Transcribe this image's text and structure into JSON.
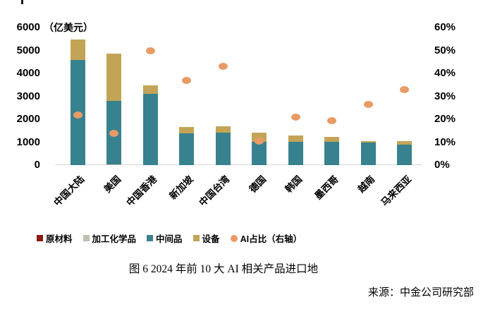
{
  "chart_data": {
    "type": "bar",
    "subtype": "stacked-bars-with-scatter-right-axis",
    "title": "图 6 2024 年前 10 大 AI 相关产品进口地",
    "unit_label": "（亿美元）",
    "categories": [
      "中国大陆",
      "美国",
      "中国香港",
      "新加坡",
      "中国台湾",
      "德国",
      "韩国",
      "墨西哥",
      "越南",
      "马来西亚"
    ],
    "series": [
      {
        "name": "原材料",
        "color": "#8B1A10",
        "values": [
          0,
          0,
          0,
          0,
          0,
          0,
          0,
          0,
          0,
          0
        ]
      },
      {
        "name": "加工化学品",
        "color": "#BEC0B0",
        "values": [
          0,
          40,
          0,
          0,
          0,
          0,
          0,
          0,
          0,
          0
        ]
      },
      {
        "name": "中间品",
        "color": "#38828F",
        "values": [
          4580,
          2750,
          3100,
          1380,
          1410,
          1030,
          1020,
          1010,
          975,
          900
        ]
      },
      {
        "name": "设备",
        "color": "#C3A457",
        "values": [
          890,
          2060,
          390,
          290,
          280,
          400,
          270,
          230,
          80,
          140
        ]
      }
    ],
    "scatter_series": {
      "name": "AI占比（右轴）",
      "color": "#E89B66",
      "values": [
        22,
        14,
        50,
        37,
        43,
        10.5,
        21,
        19.5,
        26.5,
        33
      ]
    },
    "left_axis": {
      "ticks": [
        0,
        1000,
        2000,
        3000,
        4000,
        5000,
        6000
      ],
      "min": 0,
      "max": 6000
    },
    "right_axis": {
      "ticks": [
        "0%",
        "10%",
        "20%",
        "30%",
        "40%",
        "50%",
        "60%"
      ],
      "min": 0,
      "max": 60
    },
    "grid": "off",
    "legend_position": "bottom"
  },
  "legend": {
    "items": [
      {
        "label": "原材料",
        "color": "#8B1A10",
        "shape": "square"
      },
      {
        "label": "加工化学品",
        "color": "#BEC0B0",
        "shape": "square"
      },
      {
        "label": "中间品",
        "color": "#38828F",
        "shape": "square"
      },
      {
        "label": "设备",
        "color": "#C3A457",
        "shape": "square"
      },
      {
        "label": "AI占比（右轴）",
        "color": "#E89B66",
        "shape": "circle"
      }
    ]
  },
  "caption": {
    "figure_title": "图 6 2024 年前 10 大 AI 相关产品进口地"
  },
  "source": {
    "text": "来源：中金公司研究部"
  }
}
